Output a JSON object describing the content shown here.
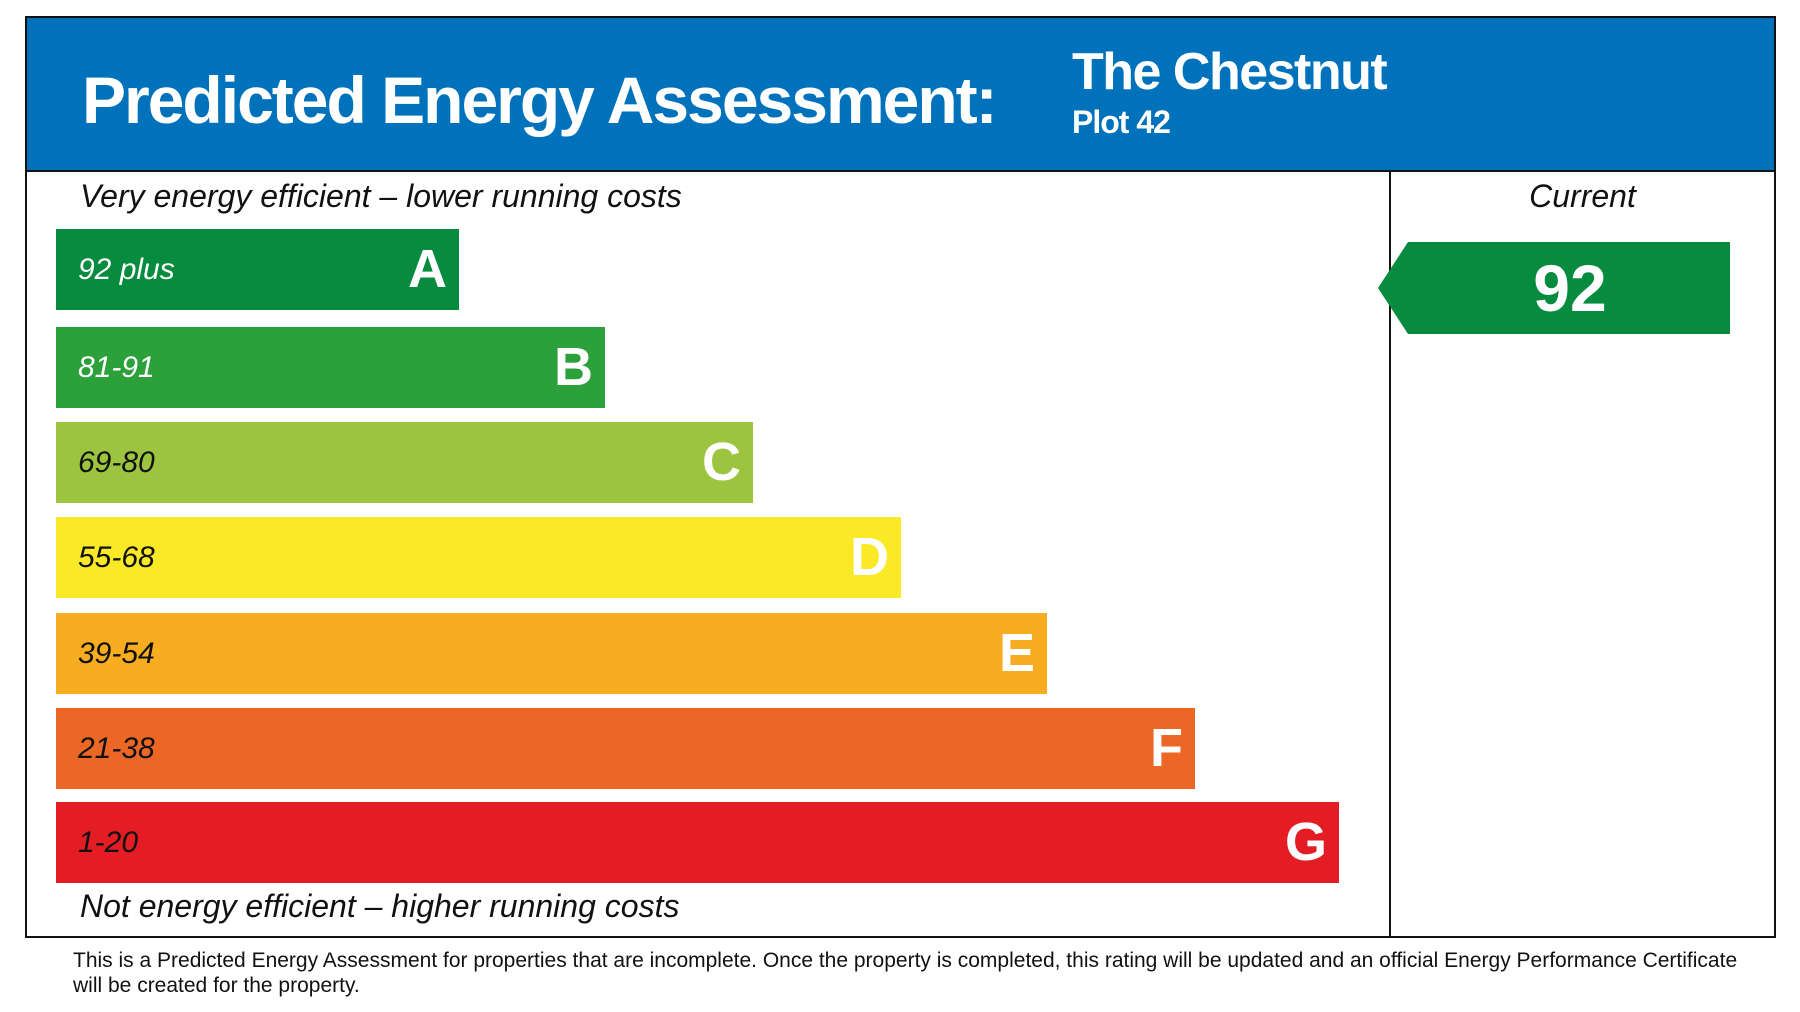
{
  "header": {
    "title": "Predicted Energy Assessment:",
    "property_name": "The Chestnut",
    "plot": "Plot 42",
    "background": "#0072bc"
  },
  "scale": {
    "top_caption": "Very energy efficient – lower running costs",
    "bottom_caption": "Not energy efficient – higher running costs",
    "bands": [
      {
        "letter": "A",
        "range": "92 plus",
        "color": "#078b3f",
        "text_color": "#ffffff"
      },
      {
        "letter": "B",
        "range": "81-91",
        "color": "#2ca03a",
        "text_color": "#ffffff"
      },
      {
        "letter": "C",
        "range": "69-80",
        "color": "#9dc43e",
        "text_color": "#111111"
      },
      {
        "letter": "D",
        "range": "55-68",
        "color": "#f9e926",
        "text_color": "#111111"
      },
      {
        "letter": "E",
        "range": "39-54",
        "color": "#f8ac20",
        "text_color": "#111111"
      },
      {
        "letter": "F",
        "range": "21-38",
        "color": "#ec6726",
        "text_color": "#111111"
      },
      {
        "letter": "G",
        "range": "1-20",
        "color": "#e31d23",
        "text_color": "#111111"
      }
    ]
  },
  "current": {
    "label": "Current",
    "value": "92",
    "band": "A",
    "color": "#078b3f"
  },
  "footer": "This is a Predicted Energy Assessment for properties that are incomplete. Once the property is completed, this rating will be updated and an official Energy Performance Certificate will be created for the property."
}
